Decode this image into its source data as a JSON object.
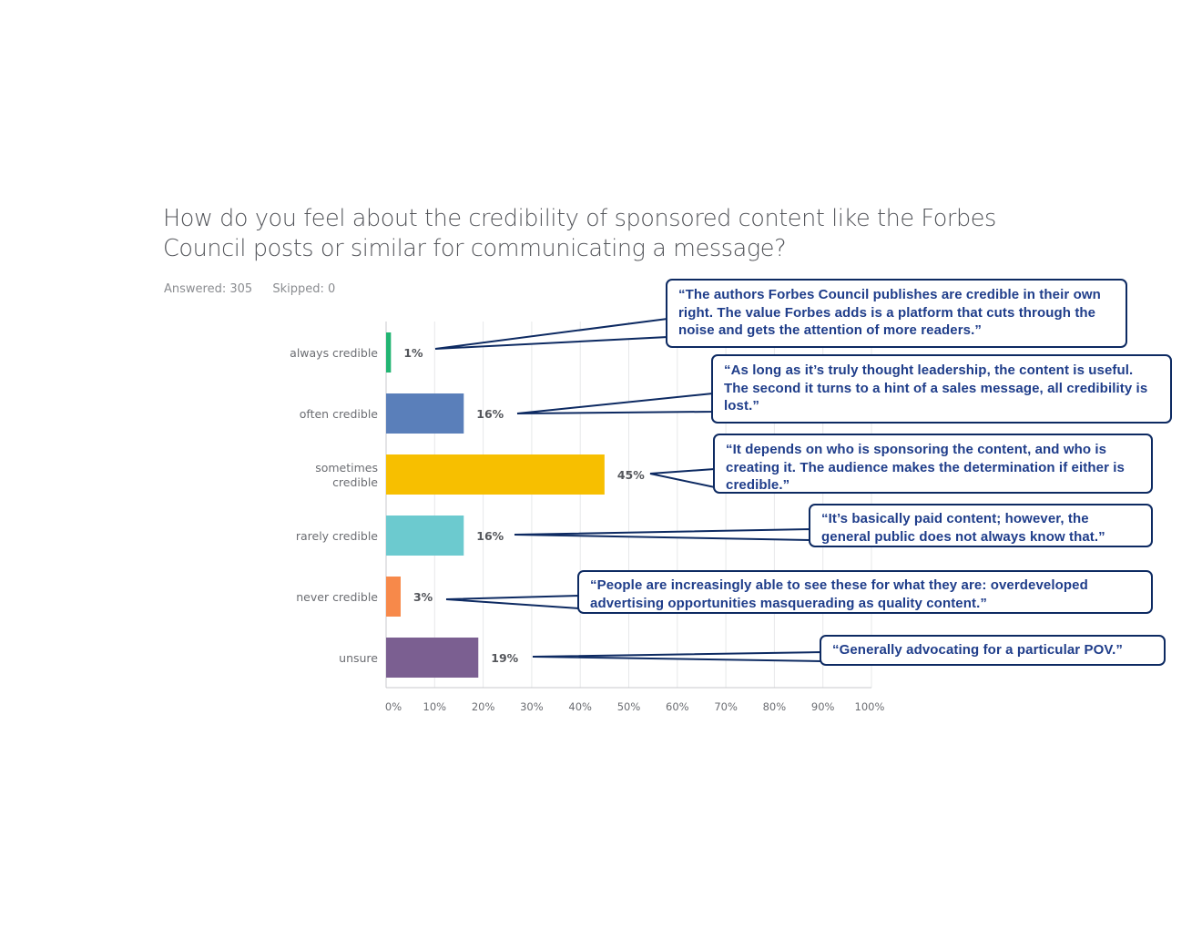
{
  "question": "How do you feel about the credibility of sponsored content like the Forbes Council posts or similar for communicating a message?",
  "answered": "Answered: 305",
  "skipped": "Skipped: 0",
  "chart_data": {
    "type": "bar",
    "orientation": "horizontal",
    "categories": [
      "always credible",
      "often credible",
      "sometimes credible",
      "rarely credible",
      "never credible",
      "unsure"
    ],
    "values": [
      1,
      16,
      45,
      16,
      3,
      19
    ],
    "value_labels": [
      "1%",
      "16%",
      "45%",
      "16%",
      "3%",
      "19%"
    ],
    "colors": [
      "#22b573",
      "#5a7fba",
      "#f7bf00",
      "#6ccacf",
      "#f7894a",
      "#7b5f91"
    ],
    "xlim": [
      0,
      100
    ],
    "xticks": [
      "0%",
      "10%",
      "20%",
      "30%",
      "40%",
      "50%",
      "60%",
      "70%",
      "80%",
      "90%",
      "100%"
    ],
    "grid": true
  },
  "quotes": [
    "“The authors Forbes Council publishes are credible in their own right. The value Forbes adds is a platform that cuts through the noise and gets the attention of more readers.”",
    "“As long as it’s truly thought leadership, the content is useful. The second it turns to a hint of a sales message, all credibility is lost.”",
    "“It depends on who is sponsoring the content, and who is creating it. The audience makes the determination if either is credible.”",
    "“It’s basically paid content; however, the general public does not always know that.”",
    "“People are increasingly able to see these for what they are: overdeveloped advertising opportunities masquerading as quality content.”",
    "“Generally advocating for a particular POV.”"
  ]
}
